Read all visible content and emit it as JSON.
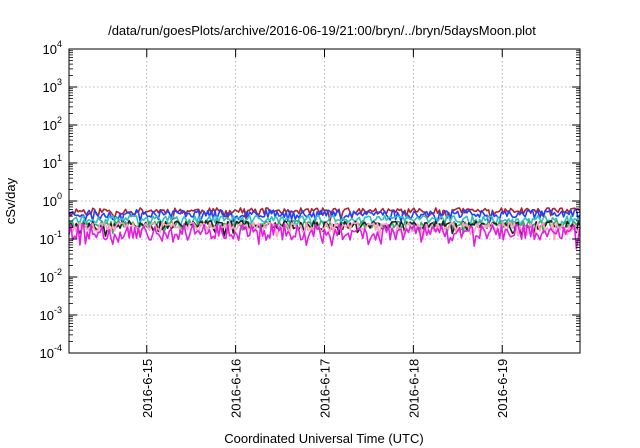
{
  "chart_data": {
    "type": "line",
    "title": "/data/run/goesPlots/archive/2016-06-19/21:00/bryn/../bryn/5daysMoon.plot",
    "xlabel": "Coordinated Universal Time (UTC)",
    "ylabel": "cSv/day",
    "yscale": "log",
    "ylim": [
      0.0001,
      10000
    ],
    "y_ticks": [
      {
        "value": 0.0001,
        "base": "10",
        "exp": "-4"
      },
      {
        "value": 0.001,
        "base": "10",
        "exp": "-3"
      },
      {
        "value": 0.01,
        "base": "10",
        "exp": "-2"
      },
      {
        "value": 0.1,
        "base": "10",
        "exp": "-1"
      },
      {
        "value": 1,
        "base": "10",
        "exp": "0"
      },
      {
        "value": 10,
        "base": "10",
        "exp": "1"
      },
      {
        "value": 100,
        "base": "10",
        "exp": "2"
      },
      {
        "value": 1000,
        "base": "10",
        "exp": "3"
      },
      {
        "value": 10000,
        "base": "10",
        "exp": "4"
      }
    ],
    "xlim": [
      "2016-06-14T03:00",
      "2016-06-19T21:00"
    ],
    "x_ticks": [
      {
        "value": "2016-06-15T00:00",
        "label": "2016-6-15"
      },
      {
        "value": "2016-06-16T00:00",
        "label": "2016-6-16"
      },
      {
        "value": "2016-06-17T00:00",
        "label": "2016-6-17"
      },
      {
        "value": "2016-06-18T00:00",
        "label": "2016-6-18"
      },
      {
        "value": "2016-06-19T00:00",
        "label": "2016-6-19"
      }
    ],
    "grid": true,
    "legend": "none",
    "series": [
      {
        "color": "#b02030",
        "level": 0.55,
        "spread": 0.12,
        "dips": 0.1,
        "seed": 11
      },
      {
        "color": "#2040ff",
        "level": 0.48,
        "spread": 0.12,
        "dips": 0.15,
        "seed": 23
      },
      {
        "color": "#30c0c0",
        "level": 0.34,
        "spread": 0.08,
        "dips": 0.1,
        "seed": 37
      },
      {
        "color": "#30b060",
        "level": 0.25,
        "spread": 0.06,
        "dips": 0.1,
        "seed": 41
      },
      {
        "color": "#202020",
        "level": 0.24,
        "spread": 0.07,
        "dips": 0.12,
        "seed": 53
      },
      {
        "color": "#ffa0c0",
        "level": 0.21,
        "spread": 0.07,
        "dips": 0.12,
        "seed": 61
      },
      {
        "color": "#e020e0",
        "level": 0.17,
        "spread": 0.09,
        "dips": 0.35,
        "seed": 79
      }
    ]
  }
}
